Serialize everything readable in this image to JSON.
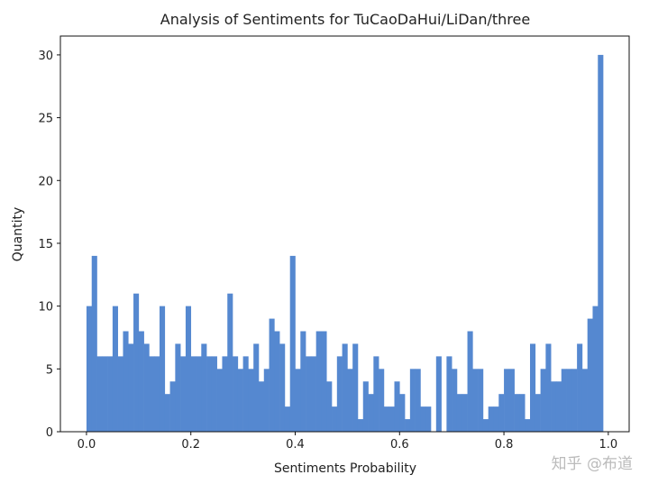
{
  "chart_data": {
    "type": "bar",
    "title": "Analysis of Sentiments for TuCaoDaHui/LiDan/three",
    "xlabel": "Sentiments Probability",
    "ylabel": "Quantity",
    "xlim": [
      -0.05,
      1.04
    ],
    "ylim": [
      0,
      31.5
    ],
    "xticks": [
      0.0,
      0.2,
      0.4,
      0.6,
      0.8,
      1.0
    ],
    "xtick_labels": [
      "0.0",
      "0.2",
      "0.4",
      "0.6",
      "0.8",
      "1.0"
    ],
    "yticks": [
      0,
      5,
      10,
      15,
      20,
      25,
      30
    ],
    "ytick_labels": [
      "0",
      "5",
      "10",
      "15",
      "20",
      "25",
      "30"
    ],
    "grid": false,
    "bin_start": 0.0,
    "bin_width": 0.01,
    "values": [
      10,
      14,
      6,
      6,
      6,
      10,
      6,
      8,
      7,
      11,
      8,
      7,
      6,
      6,
      10,
      3,
      4,
      7,
      6,
      10,
      6,
      6,
      7,
      6,
      6,
      5,
      6,
      11,
      6,
      5,
      6,
      5,
      7,
      4,
      5,
      9,
      8,
      7,
      2,
      14,
      5,
      8,
      6,
      6,
      8,
      8,
      4,
      2,
      6,
      7,
      5,
      7,
      1,
      4,
      3,
      6,
      5,
      2,
      2,
      4,
      3,
      1,
      5,
      5,
      2,
      2,
      0,
      6,
      0,
      6,
      5,
      3,
      3,
      8,
      5,
      5,
      1,
      2,
      2,
      3,
      5,
      5,
      3,
      3,
      1,
      7,
      3,
      5,
      7,
      4,
      4,
      5,
      5,
      5,
      7,
      5,
      9,
      10,
      30
    ],
    "bar_color": "#5588d0"
  },
  "watermark": "知乎 @布道"
}
